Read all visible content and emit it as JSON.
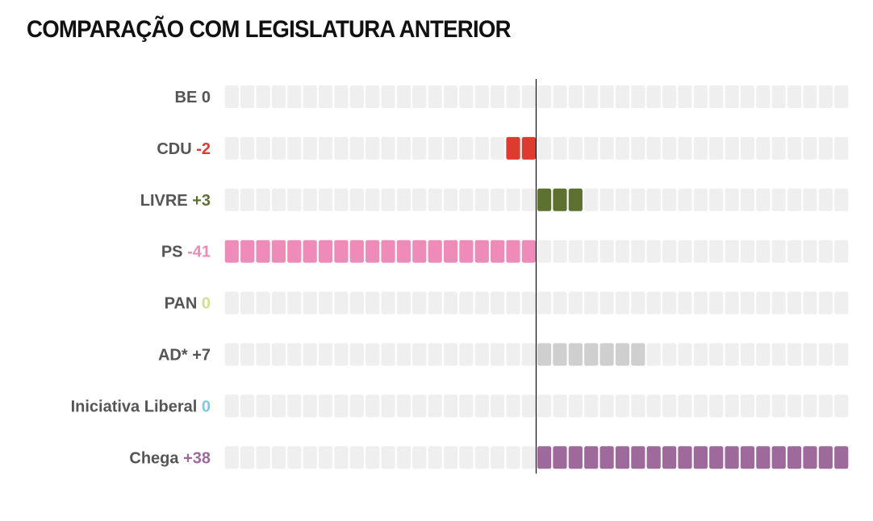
{
  "title": "COMPARAÇÃO COM LEGISLATURA ANTERIOR",
  "chart_data": {
    "type": "bar",
    "title": "COMPARAÇÃO COM LEGISLATURA ANTERIOR",
    "unit_scale": "each cell = 1 seat change, scale capped at 20 per side",
    "xlim": [
      -20,
      20
    ],
    "rows": [
      {
        "name": "BE",
        "change_label": "0",
        "value": 0,
        "color": "#555555"
      },
      {
        "name": "CDU",
        "change_label": "-2",
        "value": -2,
        "color": "#dd3a30"
      },
      {
        "name": "LIVRE",
        "change_label": "+3",
        "value": 3,
        "color": "#5e7131"
      },
      {
        "name": "PS",
        "change_label": "-41",
        "value": -41,
        "color": "#ef8bb8"
      },
      {
        "name": "PAN",
        "change_label": "0",
        "value": 0,
        "color": "#d2e08e"
      },
      {
        "name": "AD*",
        "change_label": "+7",
        "value": 7,
        "color": "#555555"
      },
      {
        "name": "Iniciativa Liberal",
        "change_label": "0",
        "value": 0,
        "color": "#7ec8e3"
      },
      {
        "name": "Chega",
        "change_label": "+38",
        "value": 38,
        "color": "#9e6a9c"
      }
    ],
    "bar_colors": {
      "BE": "#d0d0d0",
      "CDU": "#dd3a30",
      "LIVRE": "#5e7131",
      "PS": "#ef8bb8",
      "PAN": "#d2e08e",
      "AD*": "#cfcfcf",
      "Iniciativa Liberal": "#7ec8e3",
      "Chega": "#9e6a9c"
    },
    "empty_cell_color": "#efefef",
    "axis_color": "#111111"
  }
}
